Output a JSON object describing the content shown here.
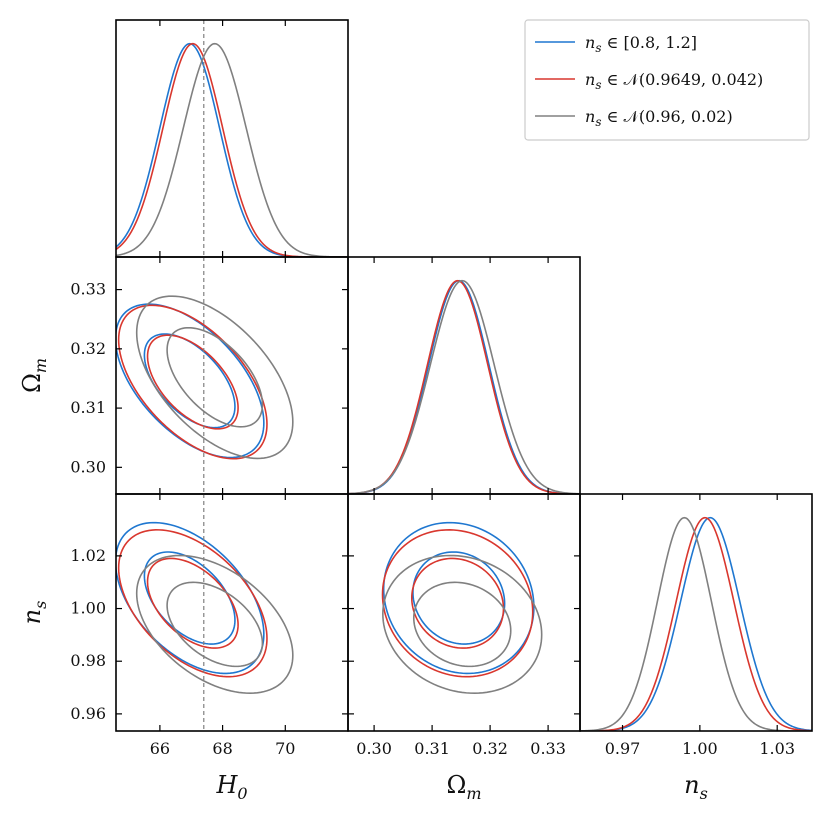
{
  "chart_data": {
    "type": "corner",
    "parameters": [
      {
        "name": "H0",
        "label": "H",
        "label_sub": "0",
        "range": [
          64.6,
          72.0
        ],
        "ticks": [
          66,
          68,
          70
        ],
        "tick_labels": [
          "66",
          "68",
          "70"
        ]
      },
      {
        "name": "Om",
        "label": "Ω",
        "label_sub": "m",
        "range": [
          0.2955,
          0.3355
        ],
        "ticks": [
          0.3,
          0.31,
          0.32,
          0.33
        ],
        "tick_labels": [
          "0.30",
          "0.31",
          "0.32",
          "0.33"
        ]
      },
      {
        "name": "ns",
        "label": "n",
        "label_sub": "s",
        "range": [
          0.9535,
          1.0435
        ],
        "ticks": [
          0.96,
          0.98,
          1.0,
          1.02
        ],
        "tick_labels": [
          "0.96",
          "0.98",
          "1.00",
          "1.02"
        ],
        "diag_ticks": [
          0.97,
          1.0,
          1.03
        ],
        "diag_tick_labels": [
          "0.97",
          "1.00",
          "1.03"
        ]
      }
    ],
    "reference_line": {
      "parameter": "H0",
      "value": 67.4,
      "color": "#808080",
      "style": "dashed"
    },
    "series": [
      {
        "name": "ns_uniform",
        "legend": {
          "pre": "n",
          "sub": "s",
          "post": " ∈ [0.8, 1.2]"
        },
        "color": "#1f77d0",
        "mean": {
          "H0": 66.95,
          "Om": 0.3146,
          "ns": 1.004
        },
        "sigma": {
          "H0": 0.95,
          "Om": 0.0052,
          "ns": 0.0115
        },
        "rho": {
          "H0_Om": -0.55,
          "H0_ns": -0.48,
          "Om_ns": -0.12
        }
      },
      {
        "name": "ns_gauss_planck",
        "legend": {
          "pre": "n",
          "sub": "s",
          "post": " ∈ 𝒩(0.9649, 0.042)"
        },
        "color": "#d9372e",
        "mean": {
          "H0": 67.05,
          "Om": 0.3144,
          "ns": 1.002
        },
        "sigma": {
          "H0": 0.95,
          "Om": 0.0052,
          "ns": 0.0112
        },
        "rho": {
          "H0_Om": -0.55,
          "H0_ns": -0.48,
          "Om_ns": -0.12
        }
      },
      {
        "name": "ns_gauss_narrow",
        "legend": {
          "pre": "n",
          "sub": "s",
          "post": " ∈ 𝒩(0.96, 0.02)"
        },
        "color": "#808080",
        "mean": {
          "H0": 67.75,
          "Om": 0.3152,
          "ns": 0.994
        },
        "sigma": {
          "H0": 1.0,
          "Om": 0.0055,
          "ns": 0.0105
        },
        "rho": {
          "H0_Om": -0.55,
          "H0_ns": -0.45,
          "Om_ns": -0.15
        }
      }
    ],
    "contour_levels": [
      "68%",
      "95%"
    ],
    "legend_position": "top-right"
  }
}
